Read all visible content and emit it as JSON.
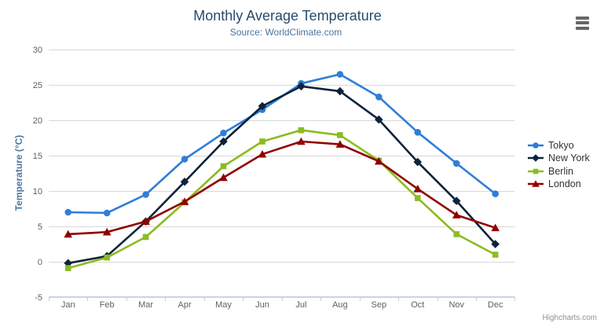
{
  "chart_data": {
    "type": "line",
    "title": "Monthly Average Temperature",
    "subtitle": "Source: WorldClimate.com",
    "categories": [
      "Jan",
      "Feb",
      "Mar",
      "Apr",
      "May",
      "Jun",
      "Jul",
      "Aug",
      "Sep",
      "Oct",
      "Nov",
      "Dec"
    ],
    "xlabel": "",
    "ylabel": "Temperature (°C)",
    "ylim": [
      -5,
      30
    ],
    "ytick_interval": 5,
    "grid": "horizontal",
    "legend_position": "right",
    "series": [
      {
        "name": "Tokyo",
        "marker": "circle",
        "color": "#2f7ed8",
        "values": [
          7.0,
          6.9,
          9.5,
          14.5,
          18.2,
          21.5,
          25.2,
          26.5,
          23.3,
          18.3,
          13.9,
          9.6
        ]
      },
      {
        "name": "New York",
        "marker": "diamond",
        "color": "#0d233a",
        "values": [
          -0.2,
          0.8,
          5.7,
          11.3,
          17.0,
          22.0,
          24.8,
          24.1,
          20.1,
          14.1,
          8.6,
          2.5
        ]
      },
      {
        "name": "Berlin",
        "marker": "square",
        "color": "#8bbc21",
        "values": [
          -0.9,
          0.6,
          3.5,
          8.4,
          13.5,
          17.0,
          18.6,
          17.9,
          14.3,
          9.0,
          3.9,
          1.0
        ]
      },
      {
        "name": "London",
        "marker": "triangle",
        "color": "#910000",
        "values": [
          3.9,
          4.2,
          5.7,
          8.5,
          11.9,
          15.2,
          17.0,
          16.6,
          14.2,
          10.3,
          6.6,
          4.8
        ]
      }
    ]
  },
  "credits": {
    "label": "Highcharts.com"
  },
  "ui_colors": {
    "title": "#274b6d",
    "subtitle": "#4d759e",
    "axis_title": "#4d759e",
    "axis_labels": "#606060",
    "grid_line": "#d8d8d8",
    "axis_line": "#c0d0e0",
    "legend_text": "#333333",
    "credits_text": "#909090",
    "menu_icon": "#666666"
  }
}
